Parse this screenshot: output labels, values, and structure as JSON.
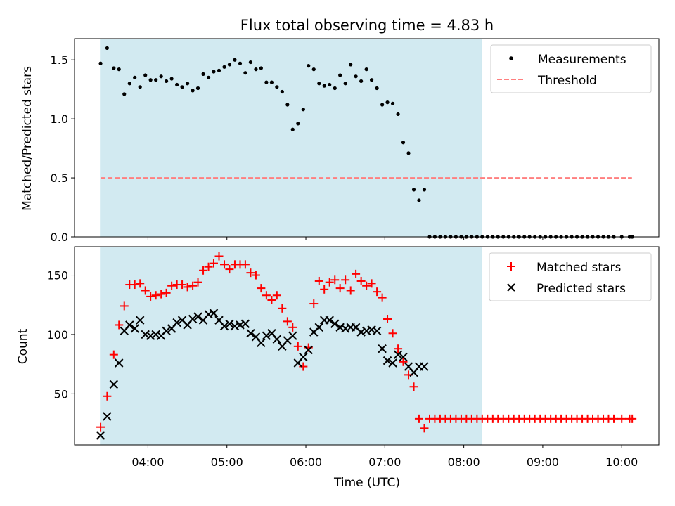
{
  "chart_data": {
    "title": "Flux total observing time = 4.83 h",
    "xlabel": "Time (UTC)",
    "x_tick_labels": [
      "04:00",
      "05:00",
      "06:00",
      "07:00",
      "08:00",
      "09:00",
      "10:00"
    ],
    "x_tick_hours": [
      4,
      5,
      6,
      7,
      8,
      9,
      10
    ],
    "xlim_hours": [
      3.07,
      10.47
    ],
    "shaded_region_hours": [
      3.4,
      8.23
    ],
    "colors": {
      "shade": "#add8e6",
      "measurement": "#000000",
      "threshold": "#ff7f7f",
      "matched": "#ff0000",
      "predicted": "#000000"
    },
    "panels": [
      {
        "type": "scatter",
        "ylabel": "Matched/Predicted stars",
        "ylim": [
          0,
          1.68
        ],
        "y_ticks": [
          0.0,
          0.5,
          1.0,
          1.5
        ],
        "y_tick_labels": [
          "0.0",
          "0.5",
          "1.0",
          "1.5"
        ],
        "legend_position": "top-right",
        "series": [
          {
            "name": "Measurements",
            "marker": "dot",
            "x_hours": [
              3.4,
              3.483,
              3.567,
              3.633,
              3.7,
              3.767,
              3.833,
              3.9,
              3.967,
              4.033,
              4.1,
              4.167,
              4.233,
              4.3,
              4.367,
              4.433,
              4.5,
              4.567,
              4.633,
              4.7,
              4.767,
              4.833,
              4.9,
              4.967,
              5.033,
              5.1,
              5.167,
              5.233,
              5.3,
              5.367,
              5.433,
              5.5,
              5.567,
              5.633,
              5.7,
              5.767,
              5.833,
              5.9,
              5.967,
              6.033,
              6.1,
              6.167,
              6.233,
              6.3,
              6.367,
              6.433,
              6.5,
              6.567,
              6.633,
              6.7,
              6.767,
              6.833,
              6.9,
              6.967,
              7.033,
              7.1,
              7.167,
              7.233,
              7.3,
              7.367,
              7.433,
              7.5,
              7.567,
              7.633,
              7.7,
              7.767,
              7.833,
              7.9,
              7.967,
              8.033,
              8.1,
              8.167,
              8.233,
              8.3,
              8.367,
              8.433,
              8.5,
              8.567,
              8.633,
              8.7,
              8.767,
              8.833,
              8.9,
              8.967,
              9.033,
              9.1,
              9.167,
              9.233,
              9.3,
              9.367,
              9.433,
              9.5,
              9.567,
              9.633,
              9.7,
              9.767,
              9.833,
              9.9,
              10.0,
              10.1,
              10.133
            ],
            "y": [
              1.47,
              1.6,
              1.43,
              1.42,
              1.21,
              1.3,
              1.35,
              1.27,
              1.37,
              1.33,
              1.33,
              1.36,
              1.32,
              1.34,
              1.29,
              1.27,
              1.3,
              1.24,
              1.26,
              1.38,
              1.35,
              1.4,
              1.41,
              1.44,
              1.46,
              1.5,
              1.47,
              1.39,
              1.48,
              1.42,
              1.43,
              1.31,
              1.31,
              1.27,
              1.23,
              1.12,
              0.91,
              0.96,
              1.08,
              1.45,
              1.42,
              1.3,
              1.28,
              1.29,
              1.26,
              1.37,
              1.3,
              1.46,
              1.36,
              1.32,
              1.42,
              1.33,
              1.26,
              1.12,
              1.14,
              1.13,
              1.04,
              0.8,
              0.71,
              0.4,
              0.31,
              0.4,
              0.0,
              0.0,
              0.0,
              0.0,
              0.0,
              0.0,
              0.0,
              0.0,
              0.0,
              0.0,
              0.0,
              0.0,
              0.0,
              0.0,
              0.0,
              0.0,
              0.0,
              0.0,
              0.0,
              0.0,
              0.0,
              0.0,
              0.0,
              0.0,
              0.0,
              0.0,
              0.0,
              0.0,
              0.0,
              0.0,
              0.0,
              0.0,
              0.0,
              0.0,
              0.0,
              0.0,
              0.0,
              0.0,
              0.0
            ]
          },
          {
            "name": "Threshold",
            "marker": "dashed-line",
            "x_hours": [
              3.4,
              10.13
            ],
            "y": [
              0.5,
              0.5
            ]
          }
        ]
      },
      {
        "type": "scatter",
        "ylabel": "Count",
        "ylim": [
          7,
          174
        ],
        "y_ticks": [
          50,
          100,
          150
        ],
        "y_tick_labels": [
          "50",
          "100",
          "150"
        ],
        "legend_position": "top-right",
        "series": [
          {
            "name": "Matched stars",
            "marker": "plus",
            "x_hours": [
              3.4,
              3.483,
              3.567,
              3.633,
              3.7,
              3.767,
              3.833,
              3.9,
              3.967,
              4.033,
              4.1,
              4.167,
              4.233,
              4.3,
              4.367,
              4.433,
              4.5,
              4.567,
              4.633,
              4.7,
              4.767,
              4.833,
              4.9,
              4.967,
              5.033,
              5.1,
              5.167,
              5.233,
              5.3,
              5.367,
              5.433,
              5.5,
              5.567,
              5.633,
              5.7,
              5.767,
              5.833,
              5.9,
              5.967,
              6.033,
              6.1,
              6.167,
              6.233,
              6.3,
              6.367,
              6.433,
              6.5,
              6.567,
              6.633,
              6.7,
              6.767,
              6.833,
              6.9,
              6.967,
              7.033,
              7.1,
              7.167,
              7.233,
              7.3,
              7.367,
              7.433,
              7.5,
              7.567,
              7.633,
              7.7,
              7.767,
              7.833,
              7.9,
              7.967,
              8.033,
              8.1,
              8.167,
              8.233,
              8.3,
              8.367,
              8.433,
              8.5,
              8.567,
              8.633,
              8.7,
              8.767,
              8.833,
              8.9,
              8.967,
              9.033,
              9.1,
              9.167,
              9.233,
              9.3,
              9.367,
              9.433,
              9.5,
              9.567,
              9.633,
              9.7,
              9.767,
              9.833,
              9.9,
              10.0,
              10.1,
              10.133
            ],
            "y": [
              22,
              48,
              83,
              108,
              124,
              142,
              142,
              143,
              137,
              132,
              133,
              134,
              135,
              141,
              142,
              142,
              140,
              141,
              144,
              154,
              157,
              160,
              166,
              159,
              155,
              159,
              159,
              159,
              152,
              150,
              139,
              133,
              129,
              133,
              122,
              111,
              106,
              90,
              73,
              89,
              126,
              145,
              138,
              144,
              146,
              139,
              146,
              137,
              151,
              145,
              141,
              143,
              136,
              131,
              113,
              101,
              88,
              77,
              66,
              56,
              29,
              21,
              29,
              29,
              29,
              29,
              29,
              29,
              29,
              29,
              29,
              29,
              29,
              29,
              29,
              29,
              29,
              29,
              29,
              29,
              29,
              29,
              29,
              29,
              29,
              29,
              29,
              29,
              29,
              29,
              29,
              29,
              29,
              29,
              29,
              29,
              29,
              29,
              29,
              29,
              29
            ]
          },
          {
            "name": "Predicted stars",
            "marker": "x",
            "x_hours": [
              3.4,
              3.483,
              3.567,
              3.633,
              3.7,
              3.767,
              3.833,
              3.9,
              3.967,
              4.033,
              4.1,
              4.167,
              4.233,
              4.3,
              4.367,
              4.433,
              4.5,
              4.567,
              4.633,
              4.7,
              4.767,
              4.833,
              4.9,
              4.967,
              5.033,
              5.1,
              5.167,
              5.233,
              5.3,
              5.367,
              5.433,
              5.5,
              5.567,
              5.633,
              5.7,
              5.767,
              5.833,
              5.9,
              5.967,
              6.033,
              6.1,
              6.167,
              6.233,
              6.3,
              6.367,
              6.433,
              6.5,
              6.567,
              6.633,
              6.7,
              6.767,
              6.833,
              6.9,
              6.967,
              7.033,
              7.1,
              7.167,
              7.233,
              7.3,
              7.367,
              7.433,
              7.5
            ],
            "y": [
              15,
              31,
              58,
              76,
              103,
              108,
              105,
              112,
              100,
              99,
              100,
              99,
              103,
              105,
              110,
              112,
              108,
              113,
              115,
              112,
              117,
              118,
              112,
              107,
              109,
              107,
              108,
              109,
              101,
              98,
              93,
              99,
              101,
              96,
              90,
              95,
              99,
              76,
              81,
              87,
              102,
              106,
              112,
              112,
              109,
              106,
              105,
              106,
              106,
              102,
              103,
              104,
              103,
              88,
              78,
              76,
              83,
              81,
              73,
              68,
              73,
              73
            ]
          }
        ]
      }
    ]
  }
}
